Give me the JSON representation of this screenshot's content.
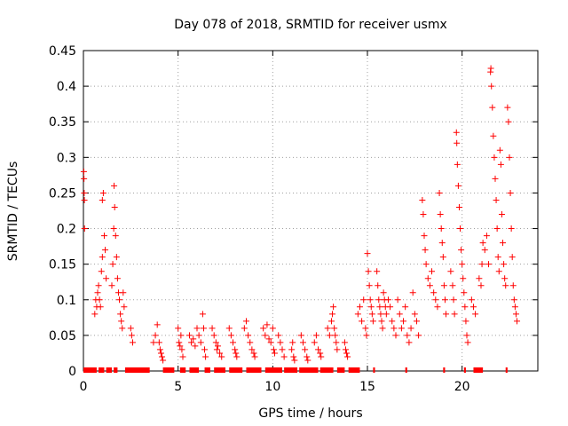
{
  "chart_data": {
    "type": "scatter",
    "title": "Day 078 of 2018, SRMTID for receiver usmx",
    "xlabel": "GPS time / hours",
    "ylabel": "SRMTID / TECUs",
    "xlim": [
      0,
      24
    ],
    "ylim": [
      0,
      0.45
    ],
    "xticks": [
      0,
      5,
      10,
      15,
      20
    ],
    "xtick_labels": [
      "0",
      "5",
      "10",
      "15",
      "20"
    ],
    "yticks": [
      0,
      0.05,
      0.1,
      0.15,
      0.2,
      0.25,
      0.3,
      0.35,
      0.4,
      0.45
    ],
    "ytick_labels": [
      "0",
      "0.05",
      "0.1",
      "0.15",
      "0.2",
      "0.25",
      "0.3",
      "0.35",
      "0.4",
      "0.45"
    ],
    "grid": true,
    "marker": "+",
    "color": "#ff0000",
    "series": [
      {
        "name": "SRMTID",
        "points": [
          [
            0.02,
            0.28
          ],
          [
            0.03,
            0.27
          ],
          [
            0.04,
            0.25
          ],
          [
            0.05,
            0.24
          ],
          [
            0.06,
            0.2
          ],
          [
            0.6,
            0.08
          ],
          [
            0.65,
            0.1
          ],
          [
            0.7,
            0.09
          ],
          [
            0.75,
            0.11
          ],
          [
            0.8,
            0.12
          ],
          [
            0.85,
            0.1
          ],
          [
            0.9,
            0.09
          ],
          [
            0.95,
            0.14
          ],
          [
            1.0,
            0.16
          ],
          [
            1.0,
            0.24
          ],
          [
            1.05,
            0.25
          ],
          [
            1.1,
            0.19
          ],
          [
            1.15,
            0.17
          ],
          [
            1.2,
            0.13
          ],
          [
            1.5,
            0.12
          ],
          [
            1.55,
            0.15
          ],
          [
            1.6,
            0.2
          ],
          [
            1.62,
            0.26
          ],
          [
            1.65,
            0.23
          ],
          [
            1.7,
            0.19
          ],
          [
            1.75,
            0.16
          ],
          [
            1.8,
            0.13
          ],
          [
            1.85,
            0.11
          ],
          [
            1.9,
            0.1
          ],
          [
            1.95,
            0.08
          ],
          [
            2.0,
            0.07
          ],
          [
            2.05,
            0.06
          ],
          [
            2.1,
            0.11
          ],
          [
            2.15,
            0.09
          ],
          [
            2.5,
            0.06
          ],
          [
            2.55,
            0.05
          ],
          [
            2.6,
            0.04
          ],
          [
            3.7,
            0.04
          ],
          [
            3.8,
            0.05
          ],
          [
            3.9,
            0.065
          ],
          [
            4.0,
            0.04
          ],
          [
            4.05,
            0.03
          ],
          [
            4.1,
            0.025
          ],
          [
            4.15,
            0.02
          ],
          [
            4.2,
            0.015
          ],
          [
            5.0,
            0.06
          ],
          [
            5.05,
            0.04
          ],
          [
            5.1,
            0.035
          ],
          [
            5.15,
            0.05
          ],
          [
            5.2,
            0.03
          ],
          [
            5.25,
            0.02
          ],
          [
            5.6,
            0.05
          ],
          [
            5.7,
            0.04
          ],
          [
            5.8,
            0.045
          ],
          [
            5.9,
            0.035
          ],
          [
            6.0,
            0.06
          ],
          [
            6.1,
            0.05
          ],
          [
            6.2,
            0.04
          ],
          [
            6.3,
            0.08
          ],
          [
            6.35,
            0.06
          ],
          [
            6.4,
            0.03
          ],
          [
            6.45,
            0.02
          ],
          [
            6.8,
            0.06
          ],
          [
            6.9,
            0.05
          ],
          [
            7.0,
            0.04
          ],
          [
            7.05,
            0.03
          ],
          [
            7.1,
            0.035
          ],
          [
            7.2,
            0.025
          ],
          [
            7.3,
            0.02
          ],
          [
            7.7,
            0.06
          ],
          [
            7.8,
            0.05
          ],
          [
            7.9,
            0.04
          ],
          [
            8.0,
            0.03
          ],
          [
            8.05,
            0.025
          ],
          [
            8.1,
            0.02
          ],
          [
            8.5,
            0.06
          ],
          [
            8.6,
            0.07
          ],
          [
            8.7,
            0.05
          ],
          [
            8.8,
            0.04
          ],
          [
            8.9,
            0.03
          ],
          [
            9.0,
            0.025
          ],
          [
            9.05,
            0.02
          ],
          [
            9.5,
            0.06
          ],
          [
            9.6,
            0.05
          ],
          [
            9.7,
            0.065
          ],
          [
            9.8,
            0.045
          ],
          [
            9.9,
            0.04
          ],
          [
            10.0,
            0.06
          ],
          [
            10.05,
            0.03
          ],
          [
            10.1,
            0.025
          ],
          [
            10.3,
            0.05
          ],
          [
            10.4,
            0.04
          ],
          [
            10.5,
            0.03
          ],
          [
            10.6,
            0.02
          ],
          [
            11.0,
            0.03
          ],
          [
            11.05,
            0.04
          ],
          [
            11.1,
            0.02
          ],
          [
            11.15,
            0.015
          ],
          [
            11.5,
            0.05
          ],
          [
            11.6,
            0.04
          ],
          [
            11.7,
            0.03
          ],
          [
            11.8,
            0.02
          ],
          [
            11.85,
            0.015
          ],
          [
            12.2,
            0.04
          ],
          [
            12.3,
            0.05
          ],
          [
            12.4,
            0.03
          ],
          [
            12.5,
            0.025
          ],
          [
            12.55,
            0.02
          ],
          [
            12.9,
            0.06
          ],
          [
            13.0,
            0.05
          ],
          [
            13.1,
            0.07
          ],
          [
            13.15,
            0.08
          ],
          [
            13.2,
            0.09
          ],
          [
            13.25,
            0.06
          ],
          [
            13.3,
            0.05
          ],
          [
            13.35,
            0.04
          ],
          [
            13.4,
            0.03
          ],
          [
            13.8,
            0.04
          ],
          [
            13.85,
            0.03
          ],
          [
            13.9,
            0.025
          ],
          [
            13.95,
            0.02
          ],
          [
            14.5,
            0.08
          ],
          [
            14.6,
            0.09
          ],
          [
            14.7,
            0.07
          ],
          [
            14.8,
            0.1
          ],
          [
            14.9,
            0.06
          ],
          [
            14.95,
            0.05
          ],
          [
            15.0,
            0.165
          ],
          [
            15.05,
            0.14
          ],
          [
            15.1,
            0.12
          ],
          [
            15.15,
            0.1
          ],
          [
            15.2,
            0.09
          ],
          [
            15.25,
            0.08
          ],
          [
            15.3,
            0.07
          ],
          [
            15.5,
            0.14
          ],
          [
            15.55,
            0.12
          ],
          [
            15.6,
            0.1
          ],
          [
            15.65,
            0.09
          ],
          [
            15.7,
            0.08
          ],
          [
            15.75,
            0.07
          ],
          [
            15.8,
            0.06
          ],
          [
            15.85,
            0.11
          ],
          [
            15.9,
            0.1
          ],
          [
            15.95,
            0.09
          ],
          [
            16.0,
            0.08
          ],
          [
            16.1,
            0.1
          ],
          [
            16.2,
            0.09
          ],
          [
            16.3,
            0.07
          ],
          [
            16.4,
            0.06
          ],
          [
            16.5,
            0.05
          ],
          [
            16.6,
            0.1
          ],
          [
            16.7,
            0.08
          ],
          [
            16.8,
            0.06
          ],
          [
            16.9,
            0.07
          ],
          [
            17.0,
            0.09
          ],
          [
            17.1,
            0.05
          ],
          [
            17.2,
            0.04
          ],
          [
            17.3,
            0.06
          ],
          [
            17.4,
            0.11
          ],
          [
            17.5,
            0.08
          ],
          [
            17.6,
            0.07
          ],
          [
            17.7,
            0.05
          ],
          [
            17.9,
            0.24
          ],
          [
            17.95,
            0.22
          ],
          [
            18.0,
            0.19
          ],
          [
            18.05,
            0.17
          ],
          [
            18.1,
            0.15
          ],
          [
            18.2,
            0.13
          ],
          [
            18.3,
            0.12
          ],
          [
            18.4,
            0.14
          ],
          [
            18.5,
            0.11
          ],
          [
            18.6,
            0.1
          ],
          [
            18.7,
            0.09
          ],
          [
            18.8,
            0.25
          ],
          [
            18.85,
            0.22
          ],
          [
            18.9,
            0.2
          ],
          [
            18.95,
            0.18
          ],
          [
            19.0,
            0.16
          ],
          [
            19.05,
            0.12
          ],
          [
            19.1,
            0.1
          ],
          [
            19.15,
            0.08
          ],
          [
            19.4,
            0.14
          ],
          [
            19.5,
            0.12
          ],
          [
            19.55,
            0.1
          ],
          [
            19.6,
            0.08
          ],
          [
            19.7,
            0.335
          ],
          [
            19.72,
            0.32
          ],
          [
            19.75,
            0.29
          ],
          [
            19.8,
            0.26
          ],
          [
            19.85,
            0.23
          ],
          [
            19.9,
            0.2
          ],
          [
            19.95,
            0.17
          ],
          [
            20.0,
            0.15
          ],
          [
            20.05,
            0.13
          ],
          [
            20.1,
            0.11
          ],
          [
            20.15,
            0.09
          ],
          [
            20.2,
            0.07
          ],
          [
            20.25,
            0.05
          ],
          [
            20.3,
            0.04
          ],
          [
            20.5,
            0.1
          ],
          [
            20.6,
            0.09
          ],
          [
            20.7,
            0.08
          ],
          [
            20.9,
            0.13
          ],
          [
            21.0,
            0.12
          ],
          [
            21.05,
            0.15
          ],
          [
            21.1,
            0.18
          ],
          [
            21.2,
            0.17
          ],
          [
            21.3,
            0.19
          ],
          [
            21.4,
            0.15
          ],
          [
            21.5,
            0.42
          ],
          [
            21.52,
            0.425
          ],
          [
            21.55,
            0.4
          ],
          [
            21.6,
            0.37
          ],
          [
            21.65,
            0.33
          ],
          [
            21.7,
            0.3
          ],
          [
            21.75,
            0.27
          ],
          [
            21.8,
            0.24
          ],
          [
            21.85,
            0.2
          ],
          [
            21.9,
            0.16
          ],
          [
            21.95,
            0.14
          ],
          [
            22.0,
            0.31
          ],
          [
            22.05,
            0.29
          ],
          [
            22.1,
            0.22
          ],
          [
            22.15,
            0.18
          ],
          [
            22.2,
            0.15
          ],
          [
            22.25,
            0.13
          ],
          [
            22.3,
            0.12
          ],
          [
            22.4,
            0.37
          ],
          [
            22.45,
            0.35
          ],
          [
            22.5,
            0.3
          ],
          [
            22.55,
            0.25
          ],
          [
            22.6,
            0.2
          ],
          [
            22.65,
            0.16
          ],
          [
            22.7,
            0.12
          ],
          [
            22.75,
            0.1
          ],
          [
            22.8,
            0.09
          ],
          [
            22.85,
            0.08
          ],
          [
            22.9,
            0.07
          ]
        ]
      }
    ],
    "zero_segments": [
      [
        0.0,
        0.7
      ],
      [
        0.8,
        1.1
      ],
      [
        1.2,
        1.5
      ],
      [
        1.6,
        1.8
      ],
      [
        2.2,
        3.5
      ],
      [
        4.2,
        4.8
      ],
      [
        5.1,
        5.4
      ],
      [
        5.6,
        6.1
      ],
      [
        6.4,
        6.7
      ],
      [
        6.9,
        7.5
      ],
      [
        7.7,
        8.4
      ],
      [
        8.6,
        9.4
      ],
      [
        9.6,
        10.5
      ],
      [
        10.6,
        11.3
      ],
      [
        11.4,
        12.4
      ],
      [
        12.5,
        13.2
      ],
      [
        13.4,
        13.8
      ],
      [
        14.0,
        14.6
      ],
      [
        15.3,
        15.4
      ],
      [
        17.0,
        17.1
      ],
      [
        19.0,
        19.1
      ],
      [
        20.1,
        20.2
      ],
      [
        20.6,
        21.1
      ],
      [
        22.3,
        22.4
      ]
    ]
  }
}
